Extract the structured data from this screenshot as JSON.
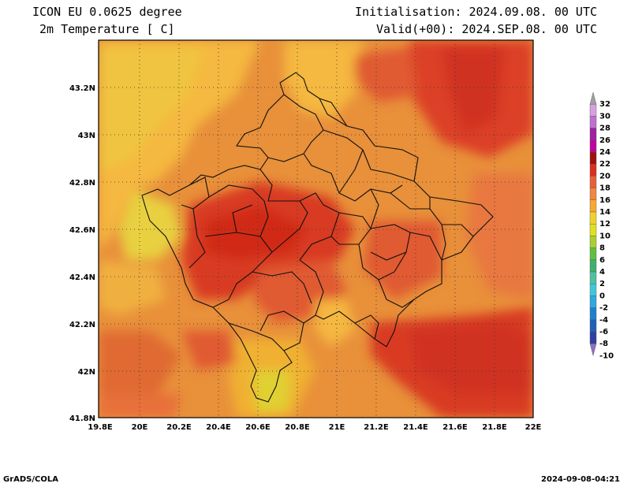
{
  "header": {
    "title": "ICON EU 0.0625 degree",
    "subtitle": "2m Temperature [ C]",
    "init": "Initialisation: 2024.09.08. 00 UTC",
    "valid": "Valid(+00): 2024.SEP.08. 00 UTC"
  },
  "map": {
    "lat_labels": [
      "43.2N",
      "43N",
      "42.8N",
      "42.6N",
      "42.4N",
      "42.2N",
      "42N",
      "41.8N"
    ],
    "lon_labels": [
      "19.8E",
      "20E",
      "20.2E",
      "20.4E",
      "20.6E",
      "20.8E",
      "21E",
      "21.2E",
      "21.4E",
      "21.6E",
      "21.8E",
      "22E"
    ],
    "lat_range": [
      41.8,
      43.4
    ],
    "lon_range": [
      19.8,
      22.0
    ],
    "grid": true
  },
  "legend": {
    "labels": [
      "32",
      "30",
      "28",
      "26",
      "24",
      "22",
      "20",
      "18",
      "16",
      "14",
      "12",
      "10",
      "8",
      "6",
      "4",
      "2",
      "0",
      "-2",
      "-4",
      "-6",
      "-8",
      "-10"
    ],
    "colors": [
      "#a0a0a0",
      "#d8a0e0",
      "#c070d0",
      "#a020a0",
      "#c000a0",
      "#a01010",
      "#d83020",
      "#e8603a",
      "#f08840",
      "#f8a830",
      "#f0d030",
      "#e0e020",
      "#a8d030",
      "#60c040",
      "#40b070",
      "#50c0a0",
      "#40c8d8",
      "#30a8e0",
      "#2080d0",
      "#2060b8",
      "#3040a0",
      "#9070c0"
    ]
  },
  "footer": {
    "left": "GrADS/COLA",
    "right": "2024-09-08-04:21"
  }
}
